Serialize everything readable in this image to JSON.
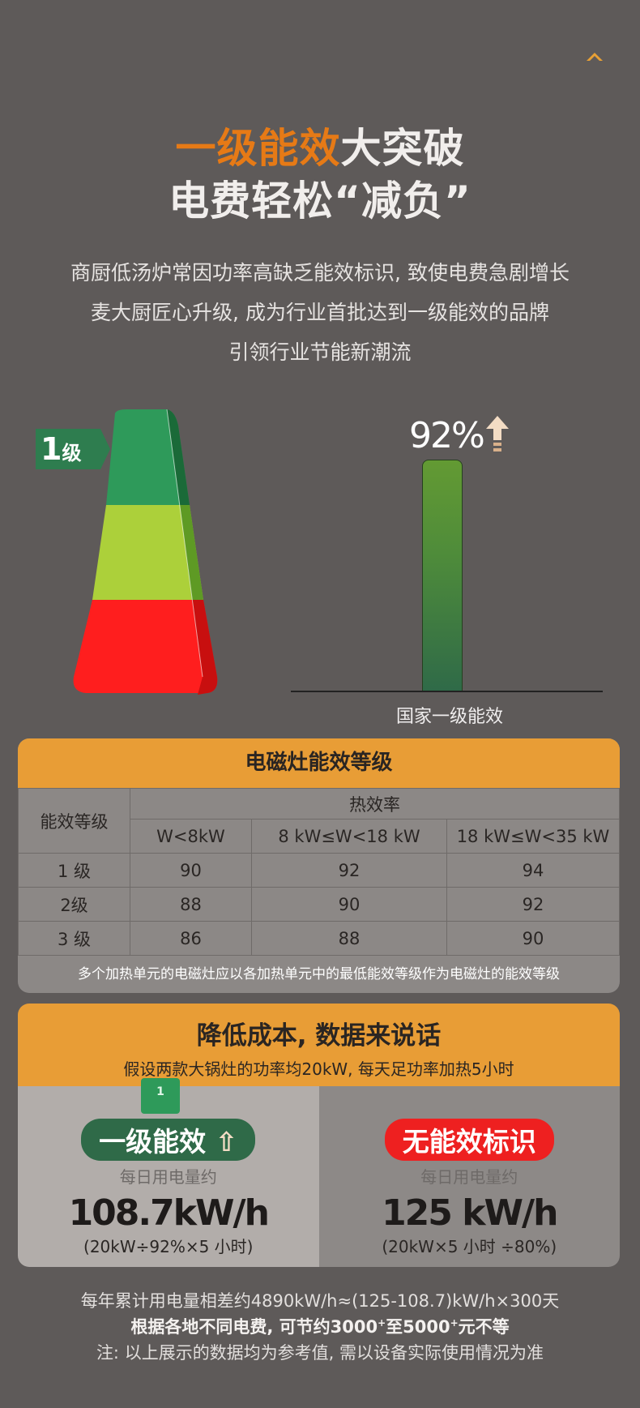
{
  "header": {
    "title_highlight": "一级能效",
    "title_rest": "大突破",
    "title_line2": "电费轻松“减负”",
    "paragraph": [
      "商厨低汤炉常因功率高缺乏能效标识, 致使电费急剧增长",
      "麦大厨匠心升级, 成为行业首批达到一级能效的品牌",
      "引领行业节能新潮流"
    ]
  },
  "graphic": {
    "badge_num": "1",
    "badge_unit": "级",
    "bar_value": "92%",
    "bar_label": "国家一级能效",
    "pyramid_colors": [
      "#2e9a5a",
      "#acd03a",
      "#ff1e1e"
    ]
  },
  "table": {
    "title": "电磁灶能效等级",
    "col0": "能效等级",
    "group": "热效率",
    "cols": [
      "W<8kW",
      "8 kW≤W<18 kW",
      "18 kW≤W<35 kW"
    ],
    "rows": [
      {
        "grade": "1 级",
        "v": [
          "90",
          "92",
          "94"
        ]
      },
      {
        "grade": "2级",
        "v": [
          "88",
          "90",
          "92"
        ]
      },
      {
        "grade": "3 级",
        "v": [
          "86",
          "88",
          "90"
        ]
      }
    ],
    "note": "多个加热单元的电磁灶应以各加热单元中的最低能效等级作为电磁灶的能效等级"
  },
  "compare": {
    "title": "降低成本, 数据来说话",
    "subtitle": "假设两款大锅灶的功率均20kW, 每天足功率加热5小时",
    "left": {
      "cube": "1",
      "pill": "一级能效",
      "sub": "每日用电量约",
      "value": "108.7kW/h",
      "calc": "(20kW÷92%×5 小时)"
    },
    "right": {
      "pill": "无能效标识",
      "sub": "每日用电量约",
      "value": "125 kW/h",
      "calc": "(20kW×5 小时 ÷80%)"
    }
  },
  "footer": {
    "line1": "每年累计用电量相差约4890kW/h≈(125-108.7)kW/h×300天",
    "line2a": "根据各地不同电费, 可节约3000",
    "sup": "+",
    "line2b": "至5000",
    "line2c": "元不等",
    "line3": "注: 以上展示的数据均为参考值, 需以设备实际使用情况为准"
  },
  "colors": {
    "accent": "#e89d36",
    "green": "#2f6a48",
    "red": "#ff1e1e"
  }
}
